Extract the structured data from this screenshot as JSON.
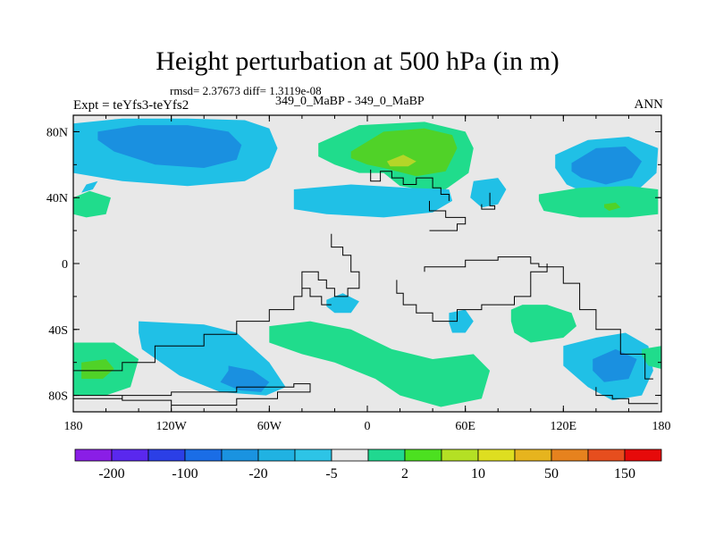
{
  "chart_data": {
    "type": "heatmap",
    "title": "Height perturbation at 500 hPa (in m)",
    "stats_line": "rmsd= 2.37673 diff= 1.3119e-08",
    "left_label": "Expt = teYfs3-teYfs2",
    "center_label": "349_0_MaBP - 349_0_MaBP",
    "right_label": "ANN",
    "units": "m",
    "x_axis": {
      "range": [
        -180,
        180
      ],
      "ticks": [
        -180,
        -120,
        -60,
        0,
        60,
        120,
        180
      ],
      "tick_labels": [
        "180",
        "120W",
        "60W",
        "0",
        "60E",
        "120E",
        "180"
      ]
    },
    "y_axis": {
      "range": [
        -90,
        90
      ],
      "ticks": [
        80,
        40,
        0,
        -40,
        -80
      ],
      "tick_labels": [
        "80N",
        "40N",
        "0",
        "40S",
        "80S"
      ]
    },
    "colorbar": {
      "labels": [
        "-200",
        "-100",
        "-20",
        "-5",
        "2",
        "10",
        "50",
        "150"
      ],
      "colors": [
        "#8a1ee6",
        "#5a28ee",
        "#2b3fe6",
        "#1a6de6",
        "#1a93e0",
        "#20b2e2",
        "#2dc4e6",
        "#e8e8e8",
        "#20d890",
        "#4ce020",
        "#b4e024",
        "#dede20",
        "#e6b41e",
        "#e6821e",
        "#e64e1e",
        "#e60a0a"
      ]
    },
    "fill_colors": {
      "neg_weak": "#20c0e6",
      "neg_mod": "#1a90e0",
      "neutral": "#e8e8e8",
      "pos_weak": "#20dc8c",
      "pos_mod": "#50d228",
      "pos_strong": "#b4d628"
    },
    "regions": [
      {
        "name": "north-pacific-low",
        "level": "neg_weak",
        "lon": [
          -180,
          -150,
          -110,
          -75,
          -60,
          -55,
          -60,
          -75,
          -110,
          -150,
          -180
        ],
        "lat": [
          85,
          88,
          88,
          87,
          82,
          70,
          58,
          50,
          47,
          50,
          55
        ]
      },
      {
        "name": "north-pacific-low-core",
        "level": "neg_mod",
        "lon": [
          -165,
          -140,
          -110,
          -85,
          -77,
          -80,
          -100,
          -130,
          -155,
          -165
        ],
        "lat": [
          80,
          84,
          84,
          80,
          72,
          63,
          58,
          60,
          68,
          75
        ]
      },
      {
        "name": "eurasia-high",
        "level": "pos_weak",
        "lon": [
          -30,
          -5,
          35,
          60,
          65,
          62,
          45,
          20,
          10,
          -5,
          -20,
          -30
        ],
        "lat": [
          73,
          84,
          86,
          80,
          70,
          55,
          43,
          47,
          55,
          55,
          60,
          65
        ]
      },
      {
        "name": "eurasia-high-mid",
        "level": "pos_mod",
        "lon": [
          -10,
          10,
          35,
          52,
          55,
          48,
          30,
          10,
          0,
          -10
        ],
        "lat": [
          68,
          80,
          82,
          78,
          70,
          56,
          53,
          58,
          60,
          64
        ]
      },
      {
        "name": "eurasia-high-core",
        "level": "pos_strong",
        "lon": [
          12,
          22,
          30,
          25,
          14,
          12
        ],
        "lat": [
          62,
          66,
          62,
          59,
          59,
          62
        ]
      },
      {
        "name": "east-asia-low",
        "level": "neg_weak",
        "lon": [
          115,
          135,
          160,
          178,
          177,
          165,
          140,
          122,
          115
        ],
        "lat": [
          66,
          75,
          77,
          70,
          55,
          44,
          40,
          48,
          58
        ]
      },
      {
        "name": "east-asia-low-core",
        "level": "neg_mod",
        "lon": [
          125,
          140,
          158,
          168,
          162,
          146,
          131,
          125
        ],
        "lat": [
          61,
          70,
          71,
          62,
          52,
          48,
          52,
          56
        ]
      },
      {
        "name": "central-asia-low",
        "level": "neg_weak",
        "lon": [
          65,
          80,
          85,
          80,
          70,
          63,
          65
        ],
        "lat": [
          50,
          52,
          45,
          36,
          34,
          40,
          50
        ]
      },
      {
        "name": "atlantic-low",
        "level": "neg_weak",
        "lon": [
          -45,
          -10,
          25,
          50,
          52,
          40,
          10,
          -25,
          -45,
          -45
        ],
        "lat": [
          45,
          48,
          46,
          45,
          38,
          31,
          28,
          30,
          33,
          40
        ]
      },
      {
        "name": "pacific-high",
        "level": "pos_weak",
        "lon": [
          105,
          130,
          160,
          178,
          178,
          160,
          130,
          108,
          105
        ],
        "lat": [
          42,
          46,
          47,
          45,
          30,
          28,
          28,
          32,
          38
        ]
      },
      {
        "name": "pacific-high-core",
        "level": "pos_mod",
        "lon": [
          145,
          152,
          155,
          148,
          145
        ],
        "lat": [
          36,
          37,
          34,
          32,
          34
        ]
      },
      {
        "name": "na-west-high",
        "level": "pos_weak",
        "lon": [
          -180,
          -170,
          -157,
          -160,
          -172,
          -180
        ],
        "lat": [
          40,
          44,
          40,
          30,
          28,
          30
        ]
      },
      {
        "name": "atlantic-blip",
        "level": "neg_weak",
        "lon": [
          -25,
          -15,
          -5,
          -10,
          -20,
          -25
        ],
        "lat": [
          -22,
          -18,
          -23,
          -30,
          -30,
          -26
        ]
      },
      {
        "name": "south-atlantic-blip",
        "level": "neg_weak",
        "lon": [
          50,
          60,
          65,
          60,
          52,
          50
        ],
        "lat": [
          -30,
          -28,
          -35,
          -42,
          -42,
          -36
        ]
      },
      {
        "name": "southern-ocean-high",
        "level": "pos_weak",
        "lon": [
          -60,
          -35,
          -10,
          15,
          40,
          65,
          75,
          70,
          45,
          20,
          5,
          -20,
          -40,
          -60
        ],
        "lat": [
          -38,
          -35,
          -40,
          -52,
          -58,
          -55,
          -65,
          -82,
          -87,
          -80,
          -70,
          -60,
          -55,
          -48
        ]
      },
      {
        "name": "south-indian-high",
        "level": "pos_weak",
        "lon": [
          88,
          95,
          110,
          125,
          128,
          120,
          100,
          90,
          88
        ],
        "lat": [
          -28,
          -25,
          -25,
          -30,
          -38,
          -45,
          -48,
          -42,
          -35
        ]
      },
      {
        "name": "south-pacific-low",
        "level": "neg_weak",
        "lon": [
          -140,
          -100,
          -80,
          -60,
          -50,
          -62,
          -90,
          -115,
          -138,
          -140
        ],
        "lat": [
          -35,
          -37,
          -42,
          -60,
          -75,
          -80,
          -78,
          -68,
          -52,
          -42
        ]
      },
      {
        "name": "south-pacific-low-core",
        "level": "neg_mod",
        "lon": [
          -85,
          -70,
          -60,
          -65,
          -78,
          -90,
          -85
        ],
        "lat": [
          -62,
          -65,
          -72,
          -78,
          -77,
          -72,
          -65
        ]
      },
      {
        "name": "sw-pacific-high",
        "level": "pos_weak",
        "lon": [
          -180,
          -155,
          -140,
          -145,
          -160,
          -180
        ],
        "lat": [
          -48,
          -48,
          -58,
          -75,
          -80,
          -80
        ]
      },
      {
        "name": "sw-pacific-high-core",
        "level": "pos_mod",
        "lon": [
          -175,
          -160,
          -155,
          -162,
          -175
        ],
        "lat": [
          -60,
          -58,
          -64,
          -70,
          -70
        ]
      },
      {
        "name": "east-australia-low",
        "level": "neg_weak",
        "lon": [
          120,
          140,
          158,
          172,
          175,
          168,
          150,
          135,
          120
        ],
        "lat": [
          -50,
          -45,
          -42,
          -50,
          -65,
          -80,
          -83,
          -75,
          -62
        ]
      },
      {
        "name": "east-australia-low-core",
        "level": "neg_mod",
        "lon": [
          138,
          152,
          165,
          160,
          145,
          138
        ],
        "lat": [
          -58,
          -52,
          -58,
          -70,
          -72,
          -65
        ]
      },
      {
        "name": "north-america-small-low",
        "level": "neg_weak",
        "lon": [
          -172,
          -165,
          -168,
          -175,
          -172
        ],
        "lat": [
          48,
          50,
          45,
          43,
          48
        ]
      },
      {
        "name": "far-east-high",
        "level": "pos_weak",
        "lon": [
          168,
          180,
          180,
          172,
          168
        ],
        "lat": [
          -52,
          -50,
          -64,
          -62,
          -56
        ]
      }
    ],
    "coastline_paths": [
      {
        "name": "north-ocean-segment",
        "lon": [
          2,
          2,
          8,
          8,
          15,
          15,
          22,
          22,
          30,
          30,
          40,
          40,
          45,
          45,
          50,
          50
        ],
        "lat": [
          57,
          50,
          50,
          56,
          56,
          52,
          52,
          48,
          48,
          52,
          52,
          46,
          46,
          42,
          42,
          38
        ]
      },
      {
        "name": "gulf-segment",
        "lon": [
          38,
          38,
          48,
          48,
          60,
          60,
          55,
          55,
          38
        ],
        "lat": [
          38,
          32,
          32,
          28,
          28,
          24,
          24,
          20,
          20
        ]
      },
      {
        "name": "asia-segment",
        "lon": [
          75,
          75,
          78,
          78,
          70,
          70
        ],
        "lat": [
          43,
          35,
          35,
          33,
          33,
          36
        ]
      },
      {
        "name": "equatorial-continent",
        "lon": [
          -22,
          -22,
          -15,
          -15,
          -10,
          -10,
          -5,
          -5,
          -12,
          -12,
          -20,
          -20,
          -25,
          -25,
          -30,
          -30,
          -40,
          -40,
          -35,
          -35,
          -28,
          -28,
          -22
        ],
        "lat": [
          18,
          10,
          10,
          5,
          5,
          -5,
          -5,
          -15,
          -15,
          -20,
          -20,
          -15,
          -15,
          -10,
          -10,
          -5,
          -5,
          -15,
          -15,
          -20,
          -20,
          -25,
          -25
        ]
      },
      {
        "name": "south-continent-left",
        "lon": [
          -40,
          -40,
          -45,
          -45,
          -60,
          -60,
          -80,
          -80,
          -100,
          -100,
          -130,
          -130,
          -150,
          -150,
          -180
        ],
        "lat": [
          -15,
          -20,
          -20,
          -28,
          -28,
          -35,
          -35,
          -43,
          -43,
          -50,
          -50,
          -60,
          -60,
          -65,
          -65
        ]
      },
      {
        "name": "antarctic-lower",
        "lon": [
          -180,
          -150,
          -150,
          -120,
          -120,
          -80,
          -80,
          -55,
          -55,
          -35,
          -35,
          -45,
          -45,
          -80,
          -80,
          -120,
          -120,
          -150,
          -150,
          -180
        ],
        "lat": [
          -80,
          -80,
          -83,
          -83,
          -86,
          -86,
          -82,
          -82,
          -78,
          -78,
          -73,
          -73,
          -75,
          -75,
          -78,
          -78,
          -80,
          -80,
          -82,
          -82
        ]
      },
      {
        "name": "south-continent-right",
        "lon": [
          18,
          18,
          22,
          22,
          30,
          30,
          40,
          40,
          55,
          55,
          70,
          70,
          90,
          90,
          100,
          100,
          110,
          110,
          120,
          120,
          130,
          130,
          140,
          140,
          155,
          155,
          170,
          170,
          175
        ],
        "lat": [
          -10,
          -18,
          -18,
          -25,
          -25,
          -30,
          -30,
          -35,
          -35,
          -28,
          -28,
          -25,
          -25,
          -20,
          -20,
          -5,
          -5,
          -2,
          -2,
          -12,
          -12,
          -28,
          -28,
          -40,
          -40,
          -55,
          -55,
          -70,
          -70
        ]
      },
      {
        "name": "southeast-ridge",
        "lon": [
          35,
          35,
          60,
          60,
          80,
          80,
          100,
          100,
          105,
          105,
          110,
          110
        ],
        "lat": [
          -5,
          -2,
          -2,
          2,
          2,
          4,
          4,
          0,
          0,
          -2,
          -2,
          0
        ]
      },
      {
        "name": "far-south-right",
        "lon": [
          140,
          140,
          150,
          150,
          160,
          160,
          178
        ],
        "lat": [
          -75,
          -80,
          -80,
          -82,
          -82,
          -85,
          -85
        ]
      }
    ]
  }
}
